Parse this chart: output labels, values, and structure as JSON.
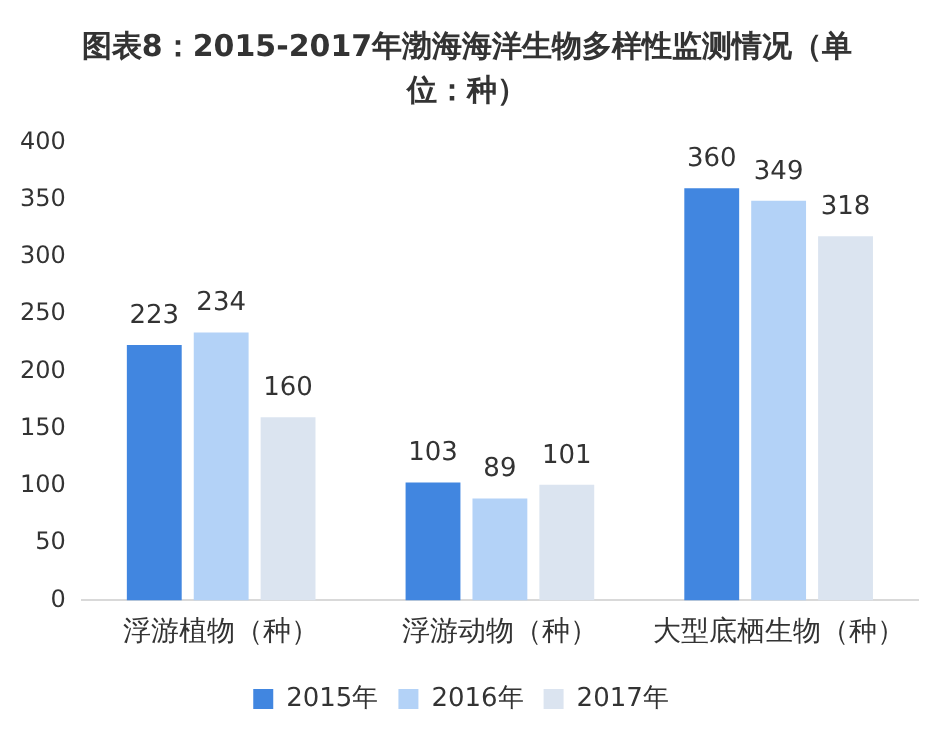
{
  "chart_data": {
    "type": "bar",
    "title": "图表8：2015-2017年渤海海洋生物多样性监测情况（单位：种）",
    "categories": [
      "浮游植物（种）",
      "浮游动物（种）",
      "大型底栖生物（种）"
    ],
    "series": [
      {
        "name": "2015年",
        "color": "#4186e0",
        "values": [
          223,
          103,
          360
        ]
      },
      {
        "name": "2016年",
        "color": "#b3d2f7",
        "values": [
          234,
          89,
          349
        ]
      },
      {
        "name": "2017年",
        "color": "#dbe4f0",
        "values": [
          160,
          101,
          318
        ]
      }
    ],
    "ylim": [
      0,
      400
    ],
    "yticks": [
      0,
      50,
      100,
      150,
      200,
      250,
      300,
      350,
      400
    ],
    "grid": false,
    "legend": "bottom",
    "data_labels": true
  }
}
